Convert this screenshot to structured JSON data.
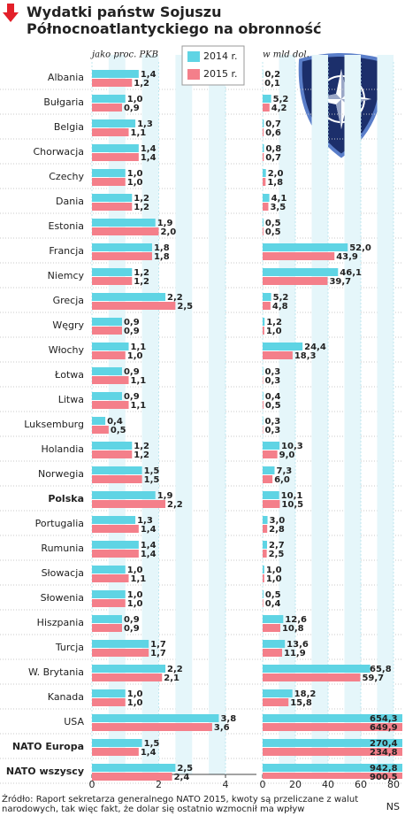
{
  "chart_data": {
    "type": "bar",
    "orientation": "horizontal",
    "title": "Wydatki państw Sojuszu Północnoatlantyckiego na obronność",
    "source": "Źródło: Raport sekretarza generalnego NATO 2015, kwoty są przeliczane z walut narodowych, tak więc fakt, że dolar się ostatnio wzmocnił ma wpływ",
    "credit": "NS",
    "legend": [
      {
        "name": "2014 r.",
        "color": "#5fd4e4"
      },
      {
        "name": "2015 r.",
        "color": "#f47f8a"
      }
    ],
    "categories": [
      "Albania",
      "Bułgaria",
      "Belgia",
      "Chorwacja",
      "Czechy",
      "Dania",
      "Estonia",
      "Francja",
      "Niemcy",
      "Grecja",
      "Węgry",
      "Włochy",
      "Łotwa",
      "Litwa",
      "Luksemburg",
      "Holandia",
      "Norwegia",
      "Polska",
      "Portugalia",
      "Rumunia",
      "Słowacja",
      "Słowenia",
      "Hiszpania",
      "Turcja",
      "W. Brytania",
      "Kanada",
      "USA",
      "NATO Europa",
      "NATO wszyscy"
    ],
    "panels": [
      {
        "subtitle": "jako proc. PKB",
        "xlim": [
          0,
          4
        ],
        "xticks": [
          0,
          2,
          4
        ],
        "series": [
          {
            "values": [
              1.4,
              1.0,
              1.3,
              1.4,
              1.0,
              1.2,
              1.9,
              1.8,
              1.2,
              2.2,
              0.9,
              1.1,
              0.9,
              0.9,
              0.4,
              1.2,
              1.5,
              1.9,
              1.3,
              1.4,
              1.0,
              1.0,
              0.9,
              1.7,
              2.2,
              1.0,
              3.8,
              1.5,
              2.5
            ],
            "value_labels": [
              "1,4",
              "1,0",
              "1,3",
              "1,4",
              "1,0",
              "1,2",
              "1,9",
              "1,8",
              "1,2",
              "2,2",
              "0,9",
              "1,1",
              "0,9",
              "0,9",
              "0,4",
              "1,2",
              "1,5",
              "1,9",
              "1,3",
              "1,4",
              "1,0",
              "1,0",
              "0,9",
              "1,7",
              "2,2",
              "1,0",
              "3,8",
              "1,5",
              "2,5"
            ]
          },
          {
            "values": [
              1.2,
              0.9,
              1.1,
              1.4,
              1.0,
              1.2,
              2.0,
              1.8,
              1.2,
              2.5,
              0.9,
              1.0,
              1.1,
              1.1,
              0.5,
              1.2,
              1.5,
              2.2,
              1.4,
              1.4,
              1.1,
              1.0,
              0.9,
              1.7,
              2.1,
              1.0,
              3.6,
              1.4,
              2.4
            ],
            "value_labels": [
              "1,2",
              "0,9",
              "1,1",
              "1,4",
              "1,0",
              "1,2",
              "2,0",
              "1,8",
              "1,2",
              "2,5",
              "0,9",
              "1,0",
              "1,1",
              "1,1",
              "0,5",
              "1,2",
              "1,5",
              "2,2",
              "1,4",
              "1,4",
              "1,1",
              "1,0",
              "0,9",
              "1,7",
              "2,1",
              "1,0",
              "3,6",
              "1,4",
              "2,4"
            ]
          }
        ]
      },
      {
        "subtitle": "w mld dol.",
        "xlim": [
          0,
          80
        ],
        "xticks": [
          0,
          20,
          40,
          60,
          80
        ],
        "series": [
          {
            "values": [
              0.2,
              5.2,
              0.7,
              0.8,
              2.0,
              4.1,
              0.5,
              52.0,
              46.1,
              5.2,
              1.2,
              24.4,
              0.3,
              0.4,
              0.3,
              10.3,
              7.3,
              10.1,
              3.0,
              2.7,
              1.0,
              0.5,
              12.6,
              13.6,
              65.8,
              18.2,
              654.3,
              270.4,
              942.8
            ],
            "value_labels": [
              "0,2",
              "5,2",
              "0,7",
              "0,8",
              "2,0",
              "4,1",
              "0,5",
              "52,0",
              "46,1",
              "5,2",
              "1,2",
              "24,4",
              "0,3",
              "0,4",
              "0,3",
              "10,3",
              "7,3",
              "10,1",
              "3,0",
              "2,7",
              "1,0",
              "0,5",
              "12,6",
              "13,6",
              "65,8",
              "18,2",
              "654,3",
              "270,4",
              "942,8"
            ]
          },
          {
            "values": [
              0.1,
              4.2,
              0.6,
              0.7,
              1.8,
              3.5,
              0.5,
              43.9,
              39.7,
              4.8,
              1.0,
              18.3,
              0.3,
              0.5,
              0.3,
              9.0,
              6.0,
              10.5,
              2.8,
              2.5,
              1.0,
              0.4,
              10.8,
              11.9,
              59.7,
              15.8,
              649.9,
              234.8,
              900.5
            ],
            "value_labels": [
              "0,1",
              "4,2",
              "0,6",
              "0,7",
              "1,8",
              "3,5",
              "0,5",
              "43,9",
              "39,7",
              "4,8",
              "1,0",
              "18,3",
              "0,3",
              "0,5",
              "0,3",
              "9,0",
              "6,0",
              "10,5",
              "2,8",
              "2,5",
              "1,0",
              "0,4",
              "10,8",
              "11,9",
              "59,7",
              "15,8",
              "649,9",
              "234,8",
              "900,5"
            ]
          }
        ]
      }
    ]
  }
}
